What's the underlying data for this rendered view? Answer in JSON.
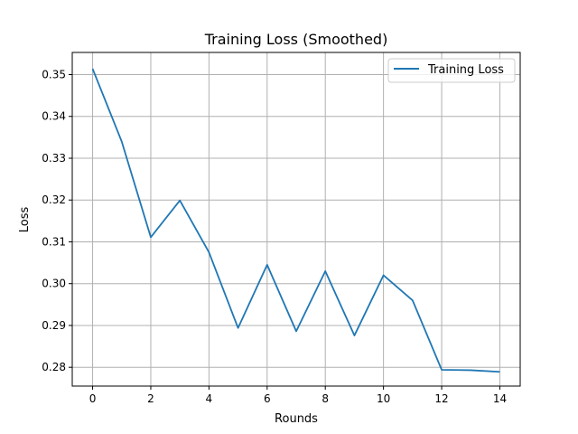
{
  "chart_data": {
    "type": "line",
    "title": "Training Loss (Smoothed)",
    "xlabel": "Rounds",
    "ylabel": "Loss",
    "xlim": [
      -0.7,
      14.7
    ],
    "ylim": [
      0.2755,
      0.3553
    ],
    "xticks": [
      0,
      2,
      4,
      6,
      8,
      10,
      12,
      14
    ],
    "yticks": [
      0.28,
      0.29,
      0.3,
      0.31,
      0.32,
      0.33,
      0.34,
      0.35
    ],
    "xtick_labels": [
      "0",
      "2",
      "4",
      "6",
      "8",
      "10",
      "12",
      "14"
    ],
    "ytick_labels": [
      "0.28",
      "0.29",
      "0.30",
      "0.31",
      "0.32",
      "0.33",
      "0.34",
      "0.35"
    ],
    "grid": true,
    "legend_position": "top-right",
    "series": [
      {
        "name": "Training Loss",
        "color": "#1f77b4",
        "x": [
          0,
          1,
          2,
          3,
          4,
          5,
          6,
          7,
          8,
          9,
          10,
          11,
          12,
          13,
          14
        ],
        "y": [
          0.3514,
          0.334,
          0.3111,
          0.3199,
          0.3075,
          0.2894,
          0.3045,
          0.2886,
          0.303,
          0.2876,
          0.302,
          0.296,
          0.2794,
          0.2793,
          0.2789
        ]
      }
    ]
  }
}
